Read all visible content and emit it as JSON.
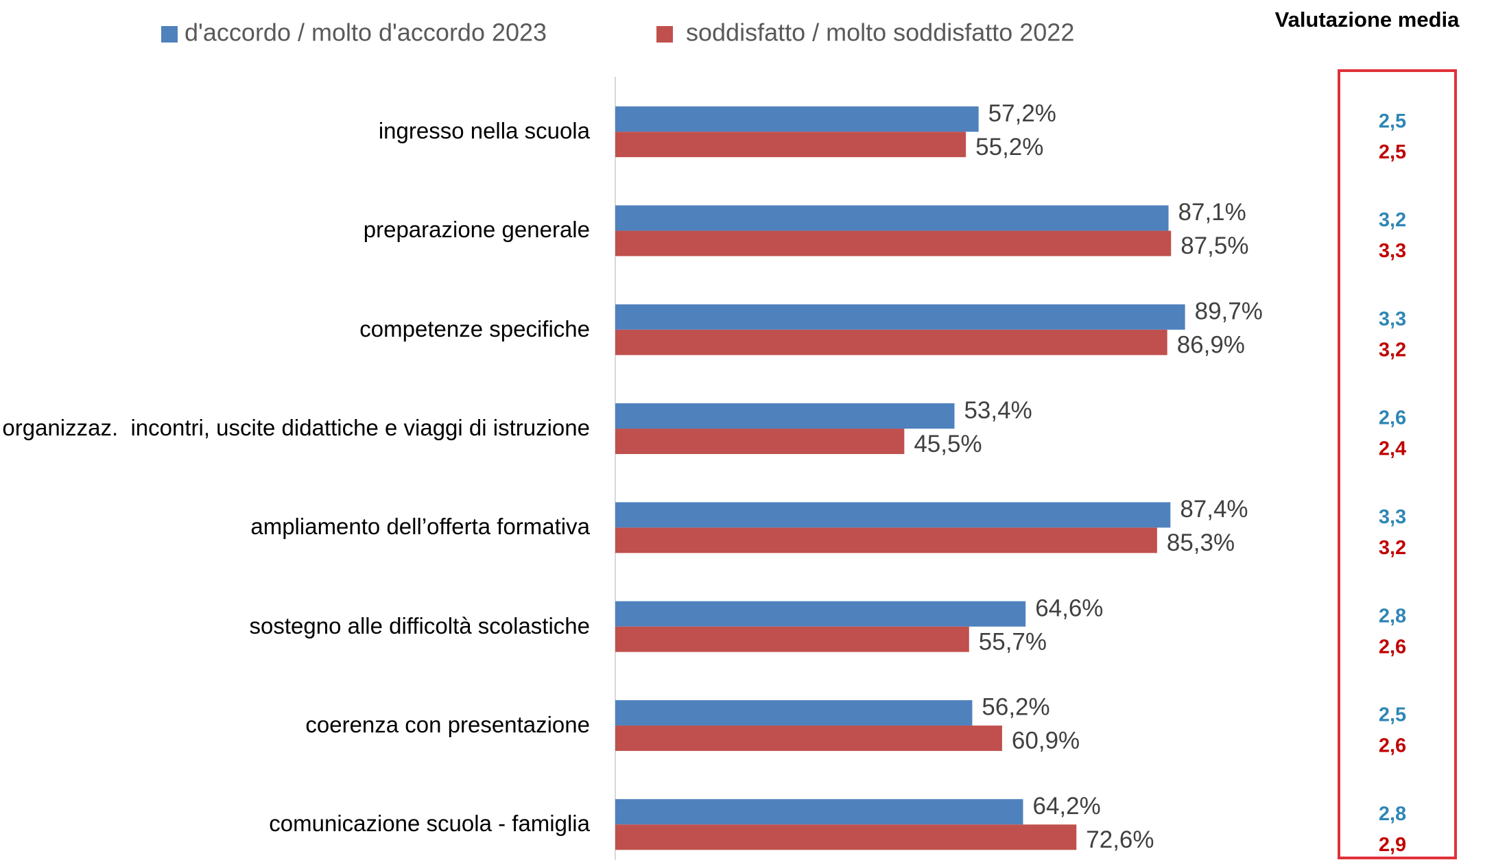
{
  "chart_data": {
    "type": "bar",
    "orientation": "horizontal",
    "categories": [
      "ingresso nella scuola",
      "preparazione generale",
      "competenze specifiche",
      "organizzaz.  incontri, uscite didattiche e viaggi di istruzione",
      "ampliamento dell’offerta formativa",
      "sostegno alle difficoltà scolastiche",
      "coerenza con presentazione",
      "comunicazione scuola - famiglia"
    ],
    "series": [
      {
        "name": "d'accordo / molto d'accordo 2023",
        "color": "#4f81bd",
        "values": [
          57.2,
          87.1,
          89.7,
          53.4,
          87.4,
          64.6,
          56.2,
          64.2
        ],
        "value_labels": [
          "57,2%",
          "87,1%",
          "89,7%",
          "53,4%",
          "87,4%",
          "64,6%",
          "56,2%",
          "64,2%"
        ]
      },
      {
        "name": "soddisfatto / molto soddisfatto 2022",
        "color": "#c0504d",
        "values": [
          55.2,
          87.5,
          86.9,
          45.5,
          85.3,
          55.7,
          60.9,
          72.6
        ],
        "value_labels": [
          "55,2%",
          "87,5%",
          "86,9%",
          "45,5%",
          "85,3%",
          "55,7%",
          "60,9%",
          "72,6%"
        ]
      }
    ],
    "xlim": [
      0,
      100
    ],
    "legend": "top",
    "mean_panel": {
      "title": "Valutazione media",
      "border_color": "#e0303a",
      "series": [
        {
          "color": "#2e86b5",
          "values": [
            2.5,
            3.2,
            3.3,
            2.6,
            3.3,
            2.8,
            2.5,
            2.8
          ],
          "value_labels": [
            "2,5",
            "3,2",
            "3,3",
            "2,6",
            "3,3",
            "2,8",
            "2,5",
            "2,8"
          ]
        },
        {
          "color": "#c00000",
          "values": [
            2.5,
            3.3,
            3.2,
            2.4,
            3.2,
            2.6,
            2.6,
            2.9
          ],
          "value_labels": [
            "2,5",
            "3,3",
            "3,2",
            "2,4",
            "3,2",
            "2,6",
            "2,6",
            "2,9"
          ]
        }
      ]
    }
  }
}
